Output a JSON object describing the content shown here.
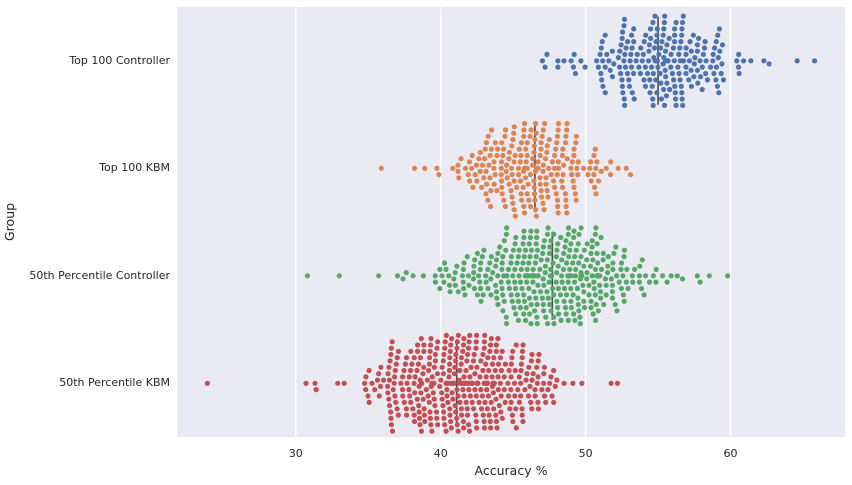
{
  "chart_data": {
    "type": "scatter",
    "subtype": "swarm",
    "title": "",
    "xlabel": "Accuracy %",
    "ylabel": "Group",
    "xlim": [
      21.8,
      67.9
    ],
    "xticks": [
      30,
      40,
      50,
      60
    ],
    "grid": "vertical-white-gridlines",
    "legend": "none",
    "background_color": "#eaeaf2",
    "gridline_color": "#ffffff",
    "median_line_color": "#4a4a4a",
    "groups": [
      {
        "label": "Top 100 Controller",
        "color": "#4c72b0",
        "median": 55.0,
        "mean": 55.3,
        "std": 3.0,
        "min": 45.5,
        "max": 63.8,
        "n": 210,
        "outliers": [
          64.6,
          65.8,
          47.2,
          49.0
        ]
      },
      {
        "label": "Top 100 KBM",
        "color": "#dd8452",
        "median": 46.5,
        "mean": 46.2,
        "std": 2.6,
        "min": 39.5,
        "max": 53.2,
        "n": 220,
        "outliers": [
          35.9,
          38.2,
          38.9,
          52.8,
          53.1
        ]
      },
      {
        "label": "50th Percentile Controller",
        "color": "#55a868",
        "median": 47.7,
        "mean": 47.6,
        "std": 4.0,
        "min": 33.5,
        "max": 58.6,
        "n": 380,
        "outliers": [
          30.8,
          33.0,
          59.8,
          57.9
        ]
      },
      {
        "label": "50th Percentile KBM",
        "color": "#c44e52",
        "median": 41.1,
        "mean": 41.4,
        "std": 3.4,
        "min": 31.0,
        "max": 52.6,
        "n": 380,
        "outliers": [
          23.9,
          30.7,
          31.4,
          52.2
        ]
      }
    ]
  }
}
